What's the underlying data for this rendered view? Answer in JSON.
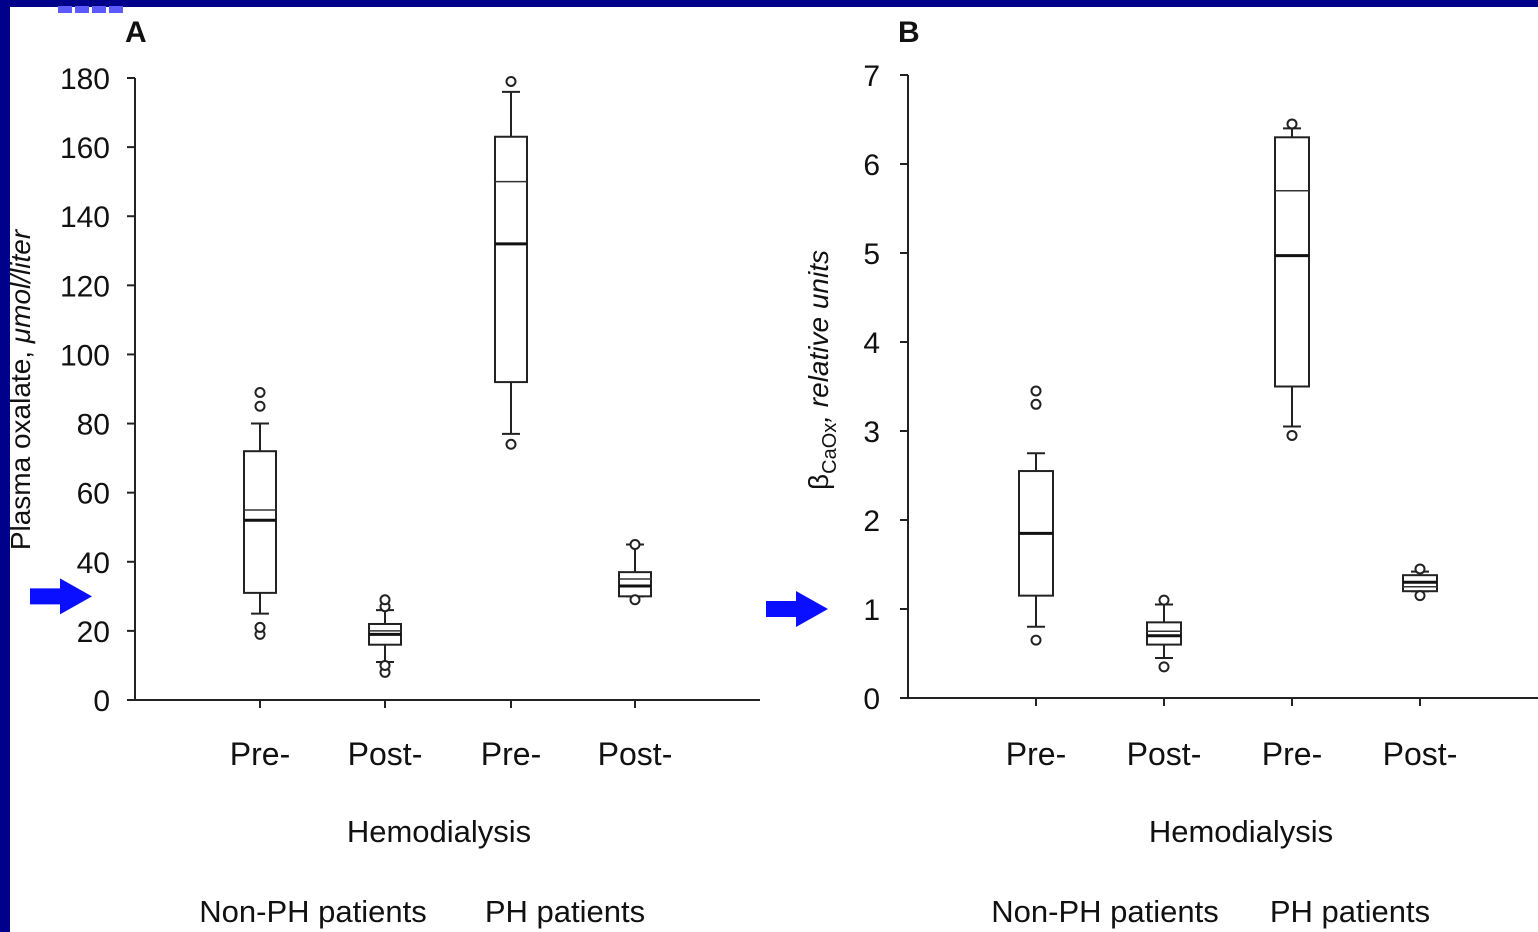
{
  "colors": {
    "background": "#00008b",
    "arrow": "#0a10ff"
  },
  "arrows": [
    {
      "panel": "A",
      "y_value": 30
    },
    {
      "panel": "B",
      "y_value": 1
    }
  ],
  "chart_data": [
    {
      "type": "box",
      "panel": "A",
      "ylabel": "Plasma oxalate, μmol/liter",
      "ylim": [
        0,
        180
      ],
      "yticks": [
        0,
        20,
        40,
        60,
        80,
        100,
        120,
        140,
        160,
        180
      ],
      "categories": [
        "Pre-",
        "Post-",
        "Pre-",
        "Post-"
      ],
      "xlabel": "Hemodialysis",
      "groups": [
        "Non-PH patients",
        "PH patients"
      ],
      "boxes": [
        {
          "category": "Pre-",
          "group": "Non-PH patients",
          "whisker_low": 25,
          "q1": 31,
          "median": 52,
          "mean": 55,
          "q3": 72,
          "whisker_high": 80,
          "outliers": [
            19,
            21,
            85,
            89
          ]
        },
        {
          "category": "Post-",
          "group": "Non-PH patients",
          "whisker_low": 11,
          "q1": 16,
          "median": 19,
          "mean": 20,
          "q3": 22,
          "whisker_high": 26,
          "outliers": [
            8,
            10,
            27,
            29
          ]
        },
        {
          "category": "Pre-",
          "group": "PH patients",
          "whisker_low": 77,
          "q1": 92,
          "median": 132,
          "mean": 150,
          "q3": 163,
          "whisker_high": 176,
          "outliers": [
            74,
            179
          ]
        },
        {
          "category": "Post-",
          "group": "PH patients",
          "whisker_low": 30,
          "q1": 30,
          "median": 33,
          "mean": 35,
          "q3": 37,
          "whisker_high": 45,
          "outliers": [
            29,
            45
          ]
        }
      ]
    },
    {
      "type": "box",
      "panel": "B",
      "ylabel_main": "β",
      "ylabel_sub": "CaOx",
      "ylabel_rest": ", relative units",
      "ylim": [
        0,
        7
      ],
      "yticks": [
        0,
        1,
        2,
        3,
        4,
        5,
        6,
        7
      ],
      "categories": [
        "Pre-",
        "Post-",
        "Pre-",
        "Post-"
      ],
      "xlabel": "Hemodialysis",
      "groups": [
        "Non-PH patients",
        "PH patients"
      ],
      "boxes": [
        {
          "category": "Pre-",
          "group": "Non-PH patients",
          "whisker_low": 0.8,
          "q1": 1.15,
          "median": 1.85,
          "mean": null,
          "q3": 2.55,
          "whisker_high": 2.75,
          "outliers": [
            0.65,
            3.3,
            3.45
          ]
        },
        {
          "category": "Post-",
          "group": "Non-PH patients",
          "whisker_low": 0.45,
          "q1": 0.6,
          "median": 0.7,
          "mean": 0.75,
          "q3": 0.85,
          "whisker_high": 1.05,
          "outliers": [
            0.35,
            1.1
          ]
        },
        {
          "category": "Pre-",
          "group": "PH patients",
          "whisker_low": 3.05,
          "q1": 3.5,
          "median": 4.97,
          "mean": 5.7,
          "q3": 6.3,
          "whisker_high": 6.4,
          "outliers": [
            2.95,
            6.45
          ]
        },
        {
          "category": "Post-",
          "group": "PH patients",
          "whisker_low": 1.2,
          "q1": 1.2,
          "median": 1.3,
          "mean": 1.25,
          "q3": 1.38,
          "whisker_high": 1.42,
          "outliers": [
            1.15,
            1.45
          ]
        }
      ]
    }
  ]
}
